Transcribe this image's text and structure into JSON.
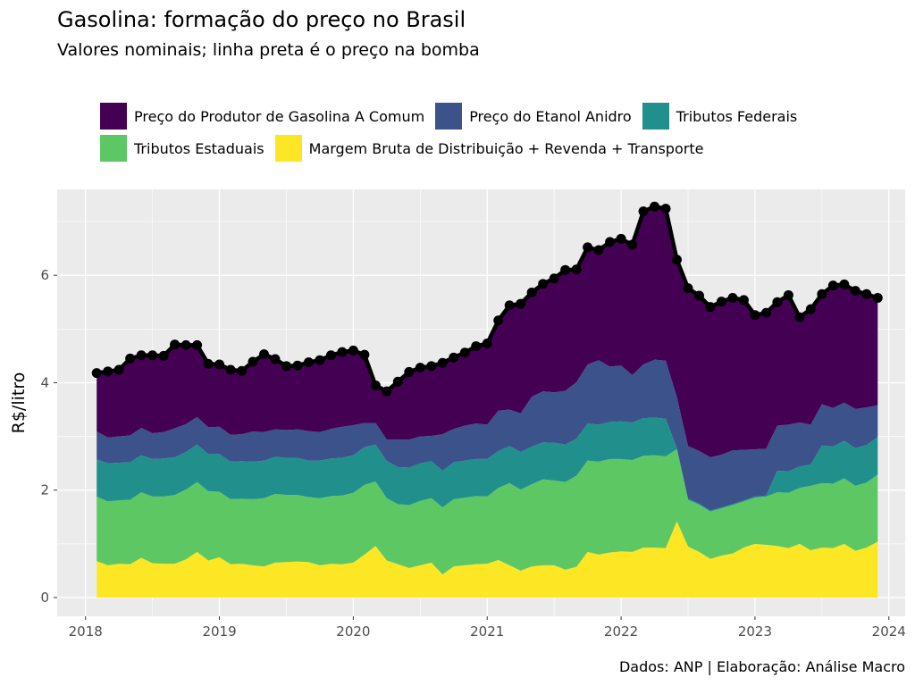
{
  "header": {
    "title": "Gasolina: formação do preço no Brasil",
    "subtitle": "Valores nominais; linha preta é o preço na bomba"
  },
  "caption": "Dados: ANP | Elaboração: Análise Macro",
  "legend": {
    "items": [
      {
        "label": "Preço do Produtor de Gasolina A Comum",
        "color": "#440154"
      },
      {
        "label": "Preço do Etanol Anidro",
        "color": "#3b528b"
      },
      {
        "label": "Tributos Federais",
        "color": "#21908c"
      },
      {
        "label": "Tributos Estaduais",
        "color": "#5dc863"
      },
      {
        "label": "Margem Bruta de Distribuição + Revenda + Transporte",
        "color": "#fde725"
      }
    ]
  },
  "chart_data": {
    "type": "area",
    "stacked": true,
    "title": "Gasolina: formação do preço no Brasil",
    "subtitle": "Valores nominais; linha preta é o preço na bomba",
    "xlabel": "",
    "ylabel": "R$/litro",
    "xlim": [
      "2017-10-15",
      "2024-02-15"
    ],
    "ylim": [
      -0.35,
      7.6
    ],
    "x_ticks": [
      "2018",
      "2019",
      "2020",
      "2021",
      "2022",
      "2023",
      "2024"
    ],
    "y_ticks": [
      0,
      2,
      4,
      6
    ],
    "grid": true,
    "legend_position": "top",
    "x": [
      "2018-02",
      "2018-03",
      "2018-04",
      "2018-05",
      "2018-06",
      "2018-07",
      "2018-08",
      "2018-09",
      "2018-10",
      "2018-11",
      "2018-12",
      "2019-01",
      "2019-02",
      "2019-03",
      "2019-04",
      "2019-05",
      "2019-06",
      "2019-07",
      "2019-08",
      "2019-09",
      "2019-10",
      "2019-11",
      "2019-12",
      "2020-01",
      "2020-02",
      "2020-03",
      "2020-04",
      "2020-05",
      "2020-06",
      "2020-07",
      "2020-08",
      "2020-09",
      "2020-10",
      "2020-11",
      "2020-12",
      "2021-01",
      "2021-02",
      "2021-03",
      "2021-04",
      "2021-05",
      "2021-06",
      "2021-07",
      "2021-08",
      "2021-09",
      "2021-10",
      "2021-11",
      "2021-12",
      "2022-01",
      "2022-02",
      "2022-03",
      "2022-04",
      "2022-05",
      "2022-06",
      "2022-07",
      "2022-08",
      "2022-09",
      "2022-10",
      "2022-11",
      "2022-12",
      "2023-01",
      "2023-02",
      "2023-03",
      "2023-04",
      "2023-05",
      "2023-06",
      "2023-07",
      "2023-08",
      "2023-09",
      "2023-10",
      "2023-11",
      "2023-12"
    ],
    "series": [
      {
        "name": "Margem Bruta de Distribuição + Revenda + Transporte",
        "color": "#fde725",
        "values": [
          0.68,
          0.6,
          0.63,
          0.62,
          0.74,
          0.64,
          0.63,
          0.63,
          0.71,
          0.85,
          0.69,
          0.75,
          0.62,
          0.63,
          0.6,
          0.58,
          0.65,
          0.66,
          0.67,
          0.66,
          0.6,
          0.63,
          0.62,
          0.65,
          0.8,
          0.96,
          0.69,
          0.62,
          0.55,
          0.6,
          0.65,
          0.43,
          0.58,
          0.6,
          0.62,
          0.63,
          0.7,
          0.6,
          0.5,
          0.58,
          0.6,
          0.6,
          0.52,
          0.57,
          0.85,
          0.8,
          0.84,
          0.86,
          0.85,
          0.93,
          0.93,
          0.92,
          1.42,
          0.95,
          0.85,
          0.72,
          0.78,
          0.82,
          0.93,
          1.0,
          0.98,
          0.96,
          0.92,
          1.0,
          0.88,
          0.93,
          0.92,
          1.0,
          0.87,
          0.93,
          1.04
        ]
      },
      {
        "name": "Tributos Estaduais",
        "color": "#5dc863",
        "values": [
          1.2,
          1.19,
          1.18,
          1.2,
          1.22,
          1.24,
          1.25,
          1.28,
          1.3,
          1.3,
          1.29,
          1.22,
          1.21,
          1.21,
          1.23,
          1.27,
          1.28,
          1.25,
          1.24,
          1.21,
          1.25,
          1.26,
          1.28,
          1.3,
          1.3,
          1.2,
          1.16,
          1.12,
          1.17,
          1.2,
          1.2,
          1.25,
          1.25,
          1.26,
          1.27,
          1.25,
          1.34,
          1.53,
          1.51,
          1.53,
          1.6,
          1.58,
          1.63,
          1.7,
          1.7,
          1.73,
          1.74,
          1.72,
          1.71,
          1.71,
          1.72,
          1.71,
          1.34,
          0.87,
          0.88,
          0.88,
          0.88,
          0.9,
          0.86,
          0.86,
          0.9,
          1.0,
          1.03,
          1.04,
          1.2,
          1.2,
          1.2,
          1.22,
          1.21,
          1.21,
          1.25
        ]
      },
      {
        "name": "Tributos Federais",
        "color": "#21908c",
        "values": [
          0.69,
          0.71,
          0.7,
          0.7,
          0.69,
          0.7,
          0.71,
          0.7,
          0.7,
          0.7,
          0.69,
          0.7,
          0.7,
          0.7,
          0.7,
          0.7,
          0.69,
          0.69,
          0.69,
          0.68,
          0.7,
          0.7,
          0.7,
          0.7,
          0.7,
          0.69,
          0.69,
          0.69,
          0.7,
          0.7,
          0.69,
          0.68,
          0.69,
          0.69,
          0.69,
          0.7,
          0.69,
          0.69,
          0.7,
          0.7,
          0.69,
          0.7,
          0.7,
          0.69,
          0.69,
          0.69,
          0.69,
          0.7,
          0.7,
          0.7,
          0.7,
          0.7,
          0.02,
          0.02,
          0.02,
          0.02,
          0.02,
          0.02,
          0.02,
          0.02,
          0.02,
          0.4,
          0.4,
          0.4,
          0.4,
          0.7,
          0.69,
          0.7,
          0.7,
          0.7,
          0.7
        ]
      },
      {
        "name": "Preço do Etanol Anidro",
        "color": "#3b528b",
        "values": [
          0.52,
          0.48,
          0.49,
          0.5,
          0.51,
          0.48,
          0.49,
          0.54,
          0.52,
          0.51,
          0.5,
          0.51,
          0.5,
          0.5,
          0.56,
          0.53,
          0.51,
          0.52,
          0.53,
          0.55,
          0.53,
          0.55,
          0.58,
          0.56,
          0.45,
          0.4,
          0.4,
          0.51,
          0.52,
          0.5,
          0.47,
          0.68,
          0.62,
          0.65,
          0.66,
          0.64,
          0.75,
          0.68,
          0.72,
          0.93,
          0.95,
          0.94,
          1.0,
          1.05,
          1.1,
          1.2,
          1.03,
          1.04,
          0.88,
          1.0,
          1.08,
          1.08,
          0.95,
          0.98,
          0.98,
          0.99,
          0.98,
          1.0,
          0.94,
          0.88,
          0.87,
          0.84,
          0.87,
          0.82,
          0.74,
          0.77,
          0.72,
          0.71,
          0.73,
          0.7,
          0.59
        ]
      },
      {
        "name": "Preço do Produtor de Gasolina A Comum",
        "color": "#440154",
        "values": [
          1.09,
          1.23,
          1.24,
          1.43,
          1.35,
          1.45,
          1.42,
          1.56,
          1.47,
          1.34,
          1.18,
          1.16,
          1.21,
          1.18,
          1.3,
          1.45,
          1.31,
          1.19,
          1.19,
          1.28,
          1.34,
          1.37,
          1.39,
          1.39,
          1.27,
          0.7,
          0.9,
          1.08,
          1.26,
          1.28,
          1.3,
          1.31,
          1.33,
          1.36,
          1.44,
          1.51,
          1.68,
          1.94,
          2.04,
          1.94,
          2.0,
          2.12,
          2.25,
          2.1,
          2.18,
          2.05,
          2.32,
          2.36,
          2.43,
          2.85,
          2.85,
          2.83,
          2.56,
          2.94,
          2.89,
          2.8,
          2.85,
          2.84,
          2.79,
          2.5,
          2.53,
          2.3,
          2.41,
          1.96,
          2.15,
          2.05,
          2.28,
          2.2,
          2.2,
          2.11,
          2.0
        ]
      }
    ],
    "pump_price": {
      "line_color": "#000000",
      "values": [
        4.18,
        4.21,
        4.24,
        4.45,
        4.51,
        4.51,
        4.5,
        4.71,
        4.7,
        4.7,
        4.35,
        4.34,
        4.24,
        4.22,
        4.39,
        4.53,
        4.44,
        4.31,
        4.32,
        4.38,
        4.42,
        4.51,
        4.57,
        4.6,
        4.52,
        3.95,
        3.84,
        4.02,
        4.2,
        4.28,
        4.31,
        4.37,
        4.47,
        4.56,
        4.68,
        4.73,
        5.16,
        5.44,
        5.47,
        5.68,
        5.84,
        5.94,
        6.1,
        6.11,
        6.52,
        6.47,
        6.62,
        6.68,
        6.57,
        7.19,
        7.28,
        7.24,
        6.29,
        5.76,
        5.62,
        5.41,
        5.51,
        5.58,
        5.54,
        5.26,
        5.3,
        5.5,
        5.63,
        5.22,
        5.37,
        5.65,
        5.81,
        5.83,
        5.71,
        5.65,
        5.58
      ]
    }
  }
}
